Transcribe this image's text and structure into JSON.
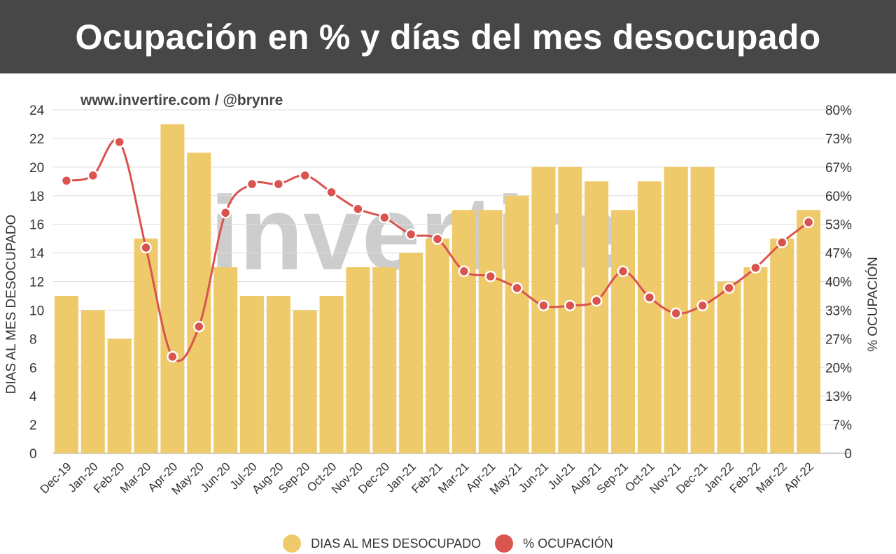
{
  "header": {
    "title": "Ocupación en % y días del mes desocupado"
  },
  "source": "www.invertire.com / @brynre",
  "colors": {
    "bars": "#EFCA6A",
    "line": "#D9534F",
    "header": "#474747"
  },
  "chart_data": {
    "type": "bar+line",
    "categories": [
      "Dec-19",
      "Jan-20",
      "Feb-20",
      "Mar-20",
      "Apr-20",
      "May-20",
      "Jun-20",
      "Jul-20",
      "Aug-20",
      "Sep-20",
      "Oct-20",
      "Nov-20",
      "Dec-20",
      "Jan-21",
      "Feb-21",
      "Mar-21",
      "Apr-21",
      "May-21",
      "Jun-21",
      "Jul-21",
      "Aug-21",
      "Sep-21",
      "Oct-21",
      "Nov-21",
      "Dec-21",
      "Jan-22",
      "Feb-22",
      "Mar-22",
      "Apr-22"
    ],
    "series": [
      {
        "name": "DIAS AL MES DESOCUPADO",
        "type": "bar",
        "axis": "left",
        "values": [
          11,
          10,
          8,
          15,
          23,
          21,
          13,
          11,
          11,
          10,
          11,
          13,
          13,
          14,
          15,
          17,
          17,
          18,
          20,
          20,
          19,
          17,
          19,
          20,
          20,
          12,
          13,
          15,
          17
        ]
      },
      {
        "name": "% OCUPACIÓN",
        "type": "line",
        "axis": "right",
        "values": [
          63.5,
          64.7,
          72.5,
          47.9,
          22.5,
          29.5,
          56,
          62.7,
          62.7,
          64.7,
          60.8,
          56.9,
          54.9,
          51,
          49.9,
          42.4,
          41.2,
          38.5,
          34.4,
          34.4,
          35.5,
          42.4,
          36.3,
          32.6,
          34.4,
          38.5,
          43.2,
          49.1,
          53.8
        ]
      }
    ],
    "ylabel_left": "DIAS AL MES DESOCUPADO",
    "ylabel_right": "% OCUPACIÓN",
    "ylim_left": [
      0,
      24
    ],
    "ylim_right": [
      0,
      80
    ],
    "yticks_left": [
      "0",
      "2",
      "4",
      "6",
      "8",
      "10",
      "12",
      "14",
      "16",
      "18",
      "20",
      "22",
      "24"
    ],
    "yticks_right": [
      "0",
      "7%",
      "13%",
      "20%",
      "27%",
      "33%",
      "40%",
      "47%",
      "53%",
      "60%",
      "67%",
      "73%",
      "80%"
    ],
    "grid": true,
    "legend": "bottom",
    "watermark": "invertire"
  }
}
